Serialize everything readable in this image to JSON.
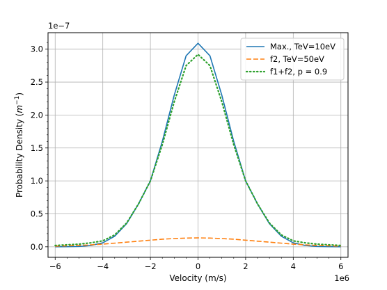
{
  "chart_data": {
    "type": "line",
    "xlabel": "Velocity (m/s)",
    "ylabel": "Probability Density ($m^{-1}$)",
    "x_scale_label": "1e6",
    "y_scale_label": "1e−7",
    "xlim": [
      -6.3,
      6.3
    ],
    "ylim": [
      -0.16,
      3.25
    ],
    "x_unit_multiplier": 1000000,
    "y_unit_multiplier": 1e-07,
    "grid": true,
    "legend_position": "top-right",
    "x_ticks": [
      -6,
      -4,
      -2,
      0,
      2,
      4,
      6
    ],
    "x_tick_labels": [
      "−6",
      "−4",
      "−2",
      "0",
      "2",
      "4",
      "6"
    ],
    "y_ticks": [
      0.0,
      0.5,
      1.0,
      1.5,
      2.0,
      2.5,
      3.0
    ],
    "y_tick_labels": [
      "0.0",
      "0.5",
      "1.0",
      "1.5",
      "2.0",
      "2.5",
      "3.0"
    ],
    "x": [
      -6,
      -5.5,
      -5,
      -4.5,
      -4,
      -3.5,
      -3,
      -2.5,
      -2,
      -1.5,
      -1,
      -0.5,
      0,
      0.5,
      1,
      1.5,
      2,
      2.5,
      3,
      3.5,
      4,
      4.5,
      5,
      5.5,
      6
    ],
    "series": [
      {
        "name": "Max., TeV=10eV",
        "color": "#1f77b4",
        "dash": "solid",
        "values": [
          0.0,
          0.001,
          0.005,
          0.02,
          0.06,
          0.16,
          0.35,
          0.65,
          1.0,
          1.6,
          2.3,
          2.9,
          3.09,
          2.9,
          2.3,
          1.6,
          1.0,
          0.65,
          0.35,
          0.16,
          0.06,
          0.02,
          0.005,
          0.001,
          0.0
        ]
      },
      {
        "name": "f2, TeV=50eV",
        "color": "#ff7f0e",
        "dash": "dashed",
        "values": [
          0.01,
          0.015,
          0.02,
          0.03,
          0.04,
          0.055,
          0.07,
          0.085,
          0.1,
          0.115,
          0.125,
          0.132,
          0.135,
          0.132,
          0.125,
          0.115,
          0.1,
          0.085,
          0.07,
          0.055,
          0.04,
          0.03,
          0.02,
          0.015,
          0.01
        ]
      },
      {
        "name": "f1+f2, p = 0.9",
        "color": "#2ca02c",
        "dash": "dotted",
        "values": [
          0.02,
          0.03,
          0.04,
          0.06,
          0.09,
          0.18,
          0.36,
          0.65,
          1.0,
          1.55,
          2.2,
          2.75,
          2.92,
          2.75,
          2.2,
          1.55,
          1.0,
          0.65,
          0.36,
          0.18,
          0.09,
          0.06,
          0.04,
          0.03,
          0.02
        ]
      }
    ]
  }
}
